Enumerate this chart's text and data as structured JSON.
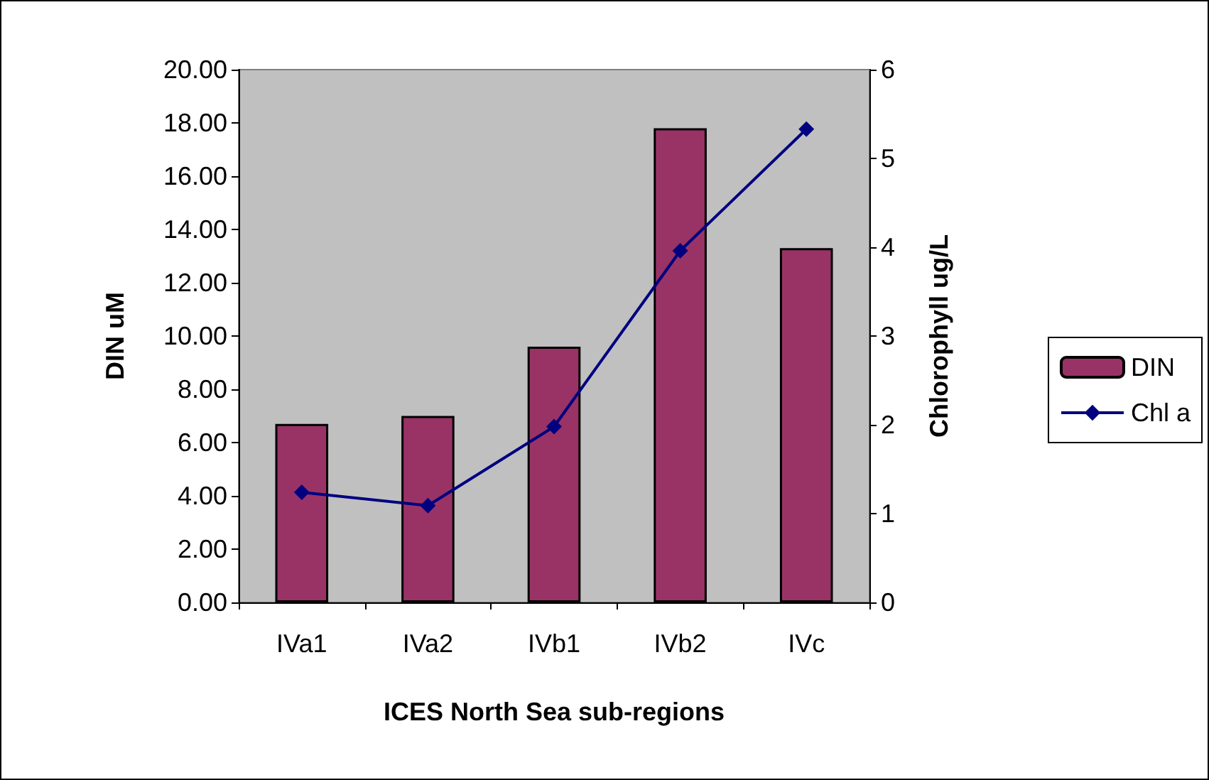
{
  "chart_data": {
    "type": "bar",
    "xlabel": "ICES North Sea sub-regions",
    "ylabel": "DIN uM",
    "y2label": "Chlorophyll ug/L",
    "categories": [
      "IVa1",
      "IVa2",
      "IVb1",
      "IVb2",
      "IVc"
    ],
    "series": [
      {
        "name": "DIN",
        "color": "#993366",
        "values": [
          6.7,
          7.0,
          9.6,
          17.8,
          13.3
        ]
      },
      {
        "name": "Chl a",
        "type": "line",
        "axis": "y2",
        "color": "#000080",
        "marker": "diamond",
        "line_style": "solid",
        "values": [
          1.24,
          1.09,
          1.98,
          3.96,
          5.33
        ]
      }
    ],
    "ylim": [
      0,
      20
    ],
    "yticks": [
      {
        "value": 0,
        "label": "0.00"
      },
      {
        "value": 2,
        "label": "2.00"
      },
      {
        "value": 4,
        "label": "4.00"
      },
      {
        "value": 6,
        "label": "6.00"
      },
      {
        "value": 8,
        "label": "8.00"
      },
      {
        "value": 10,
        "label": "10.00"
      },
      {
        "value": 12,
        "label": "12.00"
      },
      {
        "value": 14,
        "label": "14.00"
      },
      {
        "value": 16,
        "label": "16.00"
      },
      {
        "value": 18,
        "label": "18.00"
      },
      {
        "value": 20,
        "label": "20.00"
      }
    ],
    "y2lim": [
      0,
      6
    ],
    "y2ticks": [
      0,
      1,
      2,
      3,
      4,
      5,
      6
    ],
    "grid": false,
    "legend": "right"
  }
}
